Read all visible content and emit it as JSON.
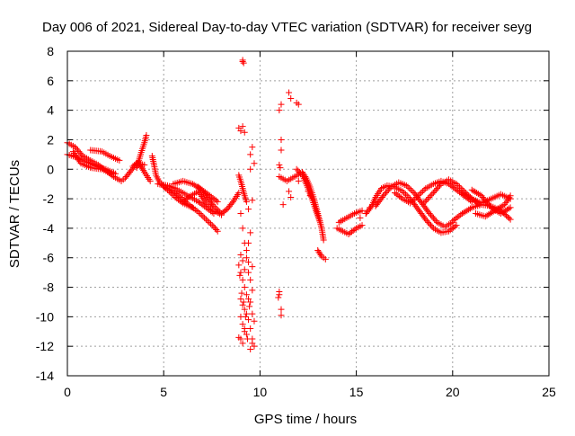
{
  "chart_data": {
    "type": "scatter",
    "title": "Day 006 of 2021, Sidereal Day-to-day VTEC variation (SDTVAR) for receiver seyg",
    "xlabel": "GPS time / hours",
    "ylabel": "SDTVAR / TECUs",
    "xlim": [
      0,
      25
    ],
    "ylim": [
      -14,
      8
    ],
    "xticks": [
      0,
      5,
      10,
      15,
      20,
      25
    ],
    "yticks": [
      -14,
      -12,
      -10,
      -8,
      -6,
      -4,
      -2,
      0,
      2,
      4,
      6,
      8
    ],
    "grid": true,
    "marker": "plus",
    "color": "#ff0000",
    "series": [
      {
        "name": "SDTVAR",
        "segments": [
          [
            [
              0.0,
              1.8
            ],
            [
              0.4,
              1.5
            ],
            [
              0.8,
              0.9
            ],
            [
              1.2,
              0.6
            ],
            [
              1.6,
              0.3
            ],
            [
              2.0,
              -0.1
            ],
            [
              2.4,
              -0.5
            ],
            [
              2.8,
              -0.8
            ],
            [
              3.0,
              -0.6
            ],
            [
              3.3,
              -0.1
            ],
            [
              3.6,
              0.4
            ],
            [
              4.0,
              0.3
            ]
          ],
          [
            [
              0.0,
              1.0
            ],
            [
              0.5,
              0.8
            ],
            [
              1.0,
              0.5
            ],
            [
              1.5,
              0.2
            ],
            [
              2.0,
              0.0
            ],
            [
              2.5,
              -0.3
            ]
          ],
          [
            [
              0.3,
              1.2
            ],
            [
              0.7,
              0.4
            ],
            [
              1.2,
              0.1
            ],
            [
              1.8,
              0.0
            ],
            [
              2.3,
              -0.3
            ]
          ],
          [
            [
              1.2,
              1.3
            ],
            [
              1.8,
              1.2
            ],
            [
              2.2,
              0.9
            ],
            [
              2.7,
              0.6
            ]
          ],
          [
            [
              3.6,
              0.1
            ],
            [
              3.8,
              1.0
            ],
            [
              4.0,
              1.8
            ],
            [
              4.1,
              2.3
            ]
          ],
          [
            [
              3.4,
              0.2
            ],
            [
              3.7,
              0.5
            ],
            [
              4.0,
              -0.2
            ],
            [
              4.3,
              -0.8
            ]
          ],
          [
            [
              4.4,
              0.9
            ],
            [
              4.5,
              0.3
            ],
            [
              4.6,
              -0.4
            ],
            [
              4.8,
              -0.9
            ],
            [
              5.2,
              -1.4
            ],
            [
              5.6,
              -1.9
            ],
            [
              6.0,
              -2.3
            ],
            [
              6.5,
              -2.6
            ]
          ],
          [
            [
              4.7,
              -1.0
            ],
            [
              5.2,
              -1.1
            ],
            [
              5.6,
              -1.3
            ],
            [
              6.0,
              -1.6
            ],
            [
              6.4,
              -1.9
            ],
            [
              6.8,
              -2.2
            ],
            [
              7.2,
              -2.6
            ],
            [
              7.6,
              -3.0
            ]
          ],
          [
            [
              5.0,
              -1.2
            ],
            [
              5.5,
              -1.5
            ],
            [
              5.9,
              -1.9
            ],
            [
              6.3,
              -2.4
            ],
            [
              6.8,
              -2.9
            ],
            [
              7.2,
              -3.4
            ],
            [
              7.6,
              -3.9
            ],
            [
              7.8,
              -4.2
            ]
          ],
          [
            [
              5.5,
              -1.0
            ],
            [
              6.0,
              -0.8
            ],
            [
              6.5,
              -1.0
            ],
            [
              7.0,
              -1.4
            ],
            [
              7.4,
              -1.8
            ],
            [
              7.8,
              -2.2
            ]
          ],
          [
            [
              6.0,
              -2.2
            ],
            [
              6.4,
              -1.8
            ],
            [
              6.8,
              -1.5
            ],
            [
              7.2,
              -2.3
            ],
            [
              7.6,
              -2.8
            ],
            [
              8.0,
              -3.1
            ]
          ],
          [
            [
              6.8,
              -1.2
            ],
            [
              7.2,
              -1.8
            ],
            [
              7.6,
              -2.5
            ],
            [
              8.0,
              -3.0
            ],
            [
              8.3,
              -2.7
            ],
            [
              8.6,
              -2.2
            ],
            [
              8.9,
              -1.6
            ]
          ],
          [
            [
              8.9,
              -0.4
            ],
            [
              9.0,
              -0.8
            ],
            [
              9.1,
              -1.3
            ],
            [
              9.2,
              -1.8
            ],
            [
              9.3,
              -2.2
            ]
          ],
          [
            [
              11.0,
              -0.5
            ],
            [
              11.4,
              -0.8
            ],
            [
              11.8,
              -0.5
            ],
            [
              12.2,
              -0.2
            ],
            [
              12.4,
              -0.6
            ],
            [
              12.6,
              -1.2
            ],
            [
              12.8,
              -2.0
            ],
            [
              13.0,
              -3.0
            ],
            [
              13.2,
              -4.0
            ],
            [
              13.3,
              -4.8
            ]
          ],
          [
            [
              11.9,
              0.0
            ],
            [
              12.2,
              -0.4
            ],
            [
              12.4,
              -1.0
            ],
            [
              12.7,
              -2.0
            ],
            [
              12.9,
              -2.8
            ],
            [
              13.1,
              -3.5
            ]
          ],
          [
            [
              13.0,
              -5.5
            ],
            [
              13.2,
              -5.9
            ],
            [
              13.4,
              -6.1
            ]
          ],
          [
            [
              14.0,
              -4.0
            ],
            [
              14.3,
              -4.2
            ],
            [
              14.6,
              -4.4
            ],
            [
              15.0,
              -4.0
            ],
            [
              15.3,
              -3.8
            ]
          ],
          [
            [
              14.1,
              -3.6
            ],
            [
              14.5,
              -3.3
            ],
            [
              14.9,
              -3.0
            ],
            [
              15.3,
              -2.8
            ]
          ],
          [
            [
              15.5,
              -3.0
            ],
            [
              15.8,
              -2.5
            ],
            [
              16.0,
              -1.9
            ],
            [
              16.3,
              -1.3
            ],
            [
              16.6,
              -1.1
            ],
            [
              17.0,
              -1.2
            ],
            [
              17.4,
              -1.5
            ],
            [
              17.8,
              -2.0
            ],
            [
              18.2,
              -2.7
            ],
            [
              18.6,
              -3.4
            ],
            [
              19.0,
              -4.0
            ],
            [
              19.4,
              -4.3
            ],
            [
              19.8,
              -4.2
            ],
            [
              20.2,
              -3.8
            ]
          ],
          [
            [
              16.0,
              -2.5
            ],
            [
              16.4,
              -1.8
            ],
            [
              16.8,
              -1.2
            ],
            [
              17.2,
              -0.9
            ],
            [
              17.6,
              -1.1
            ],
            [
              18.0,
              -1.6
            ],
            [
              18.4,
              -2.3
            ],
            [
              18.8,
              -3.0
            ],
            [
              19.2,
              -3.6
            ],
            [
              19.6,
              -3.9
            ],
            [
              20.0,
              -3.6
            ]
          ],
          [
            [
              17.0,
              -1.6
            ],
            [
              17.4,
              -2.0
            ],
            [
              17.8,
              -2.3
            ],
            [
              18.2,
              -1.8
            ],
            [
              18.6,
              -1.3
            ],
            [
              19.0,
              -1.0
            ],
            [
              19.4,
              -0.8
            ],
            [
              19.8,
              -1.0
            ],
            [
              20.2,
              -1.4
            ],
            [
              20.6,
              -1.8
            ],
            [
              21.0,
              -2.2
            ]
          ],
          [
            [
              18.5,
              -2.3
            ],
            [
              19.0,
              -1.6
            ],
            [
              19.4,
              -1.0
            ],
            [
              19.8,
              -0.7
            ],
            [
              20.2,
              -1.0
            ],
            [
              20.6,
              -1.5
            ],
            [
              21.0,
              -2.0
            ],
            [
              21.4,
              -2.4
            ]
          ],
          [
            [
              20.0,
              -3.5
            ],
            [
              20.5,
              -3.0
            ],
            [
              21.0,
              -2.6
            ],
            [
              21.5,
              -2.4
            ],
            [
              22.0,
              -2.5
            ],
            [
              22.5,
              -2.8
            ],
            [
              23.0,
              -3.4
            ]
          ],
          [
            [
              20.5,
              -1.6
            ],
            [
              21.0,
              -2.0
            ],
            [
              21.5,
              -2.3
            ],
            [
              22.0,
              -2.0
            ],
            [
              22.5,
              -1.7
            ],
            [
              23.0,
              -2.0
            ]
          ],
          [
            [
              21.0,
              -1.4
            ],
            [
              21.5,
              -1.8
            ],
            [
              22.0,
              -2.6
            ],
            [
              22.5,
              -3.0
            ],
            [
              23.0,
              -2.6
            ]
          ],
          [
            [
              21.2,
              -3.0
            ],
            [
              21.7,
              -3.2
            ],
            [
              22.2,
              -2.8
            ],
            [
              22.7,
              -2.4
            ],
            [
              23.0,
              -1.8
            ]
          ]
        ],
        "points": [
          [
            9.1,
            7.4
          ],
          [
            9.15,
            7.2
          ],
          [
            9.1,
            7.3
          ],
          [
            8.9,
            2.8
          ],
          [
            9.0,
            2.6
          ],
          [
            9.1,
            2.9
          ],
          [
            9.2,
            2.5
          ],
          [
            9.4,
            -2.7
          ],
          [
            9.5,
            0.0
          ],
          [
            9.5,
            1.0
          ],
          [
            9.6,
            1.5
          ],
          [
            9.7,
            0.4
          ],
          [
            9.6,
            -2.1
          ],
          [
            11.0,
            4.0
          ],
          [
            11.1,
            4.4
          ],
          [
            11.5,
            5.2
          ],
          [
            11.6,
            4.8
          ],
          [
            11.9,
            4.5
          ],
          [
            12.0,
            4.4
          ],
          [
            11.0,
            0.3
          ],
          [
            11.05,
            0.1
          ],
          [
            11.1,
            1.3
          ],
          [
            11.1,
            2.0
          ],
          [
            11.2,
            -2.4
          ],
          [
            11.5,
            -1.5
          ],
          [
            11.6,
            -1.9
          ],
          [
            12.0,
            -0.8
          ],
          [
            12.5,
            -1.5
          ],
          [
            12.6,
            -1.8
          ],
          [
            11.0,
            -8.5
          ],
          [
            10.95,
            -8.7
          ],
          [
            11.0,
            -8.3
          ],
          [
            11.1,
            -9.5
          ],
          [
            11.1,
            -9.9
          ],
          [
            14.2,
            -3.5
          ],
          [
            15.2,
            -3.3
          ],
          [
            15.5,
            -3.0
          ],
          [
            15.7,
            -2.6
          ],
          [
            16.0,
            -2.4
          ],
          [
            9.0,
            -3.0
          ],
          [
            9.1,
            -4.0
          ],
          [
            9.2,
            -5.0
          ],
          [
            9.0,
            -5.8
          ],
          [
            9.1,
            -6.2
          ],
          [
            9.2,
            -6.8
          ],
          [
            8.9,
            -6.5
          ],
          [
            9.0,
            -7.0
          ],
          [
            9.1,
            -7.5
          ],
          [
            9.2,
            -8.0
          ],
          [
            9.3,
            -8.5
          ],
          [
            9.0,
            -8.8
          ],
          [
            9.1,
            -9.2
          ],
          [
            9.2,
            -9.5
          ],
          [
            9.3,
            -9.8
          ],
          [
            9.4,
            -10.2
          ],
          [
            9.0,
            -10.0
          ],
          [
            9.1,
            -10.5
          ],
          [
            9.2,
            -10.8
          ],
          [
            9.3,
            -11.2
          ],
          [
            9.0,
            -11.5
          ],
          [
            9.1,
            -11.8
          ],
          [
            9.2,
            -11.0
          ],
          [
            8.9,
            -11.4
          ],
          [
            9.4,
            -7.0
          ],
          [
            9.5,
            -7.5
          ],
          [
            9.6,
            -8.2
          ],
          [
            9.5,
            -9.0
          ],
          [
            9.6,
            -9.8
          ],
          [
            9.7,
            -10.3
          ],
          [
            9.5,
            -10.8
          ],
          [
            9.6,
            -11.5
          ],
          [
            9.7,
            -12.0
          ],
          [
            9.5,
            -12.2
          ],
          [
            9.6,
            -11.8
          ],
          [
            9.4,
            -6.3
          ],
          [
            9.3,
            -5.5
          ],
          [
            9.4,
            -5.0
          ],
          [
            9.5,
            -4.3
          ],
          [
            9.3,
            -6.0
          ],
          [
            9.4,
            -8.8
          ],
          [
            9.6,
            -6.6
          ],
          [
            8.95,
            -7.2
          ],
          [
            9.05,
            -8.4
          ],
          [
            9.15,
            -9.0
          ],
          [
            9.25,
            -10.0
          ],
          [
            9.35,
            -11.5
          ],
          [
            9.45,
            -9.3
          ]
        ]
      }
    ]
  }
}
